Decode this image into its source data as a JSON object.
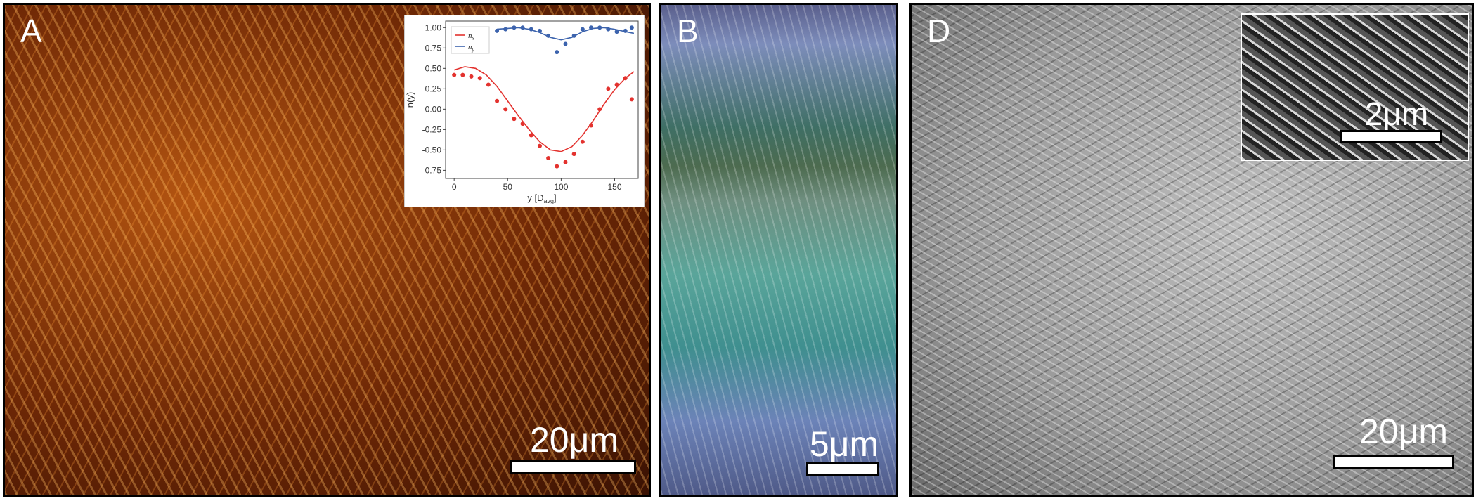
{
  "panels": {
    "A": {
      "label": "A",
      "scale_label": "20μm",
      "inset": {
        "chart_data": {
          "type": "line",
          "xlabel": "y [D",
          "xlabel_sub": "avg",
          "xlabel_end": "]",
          "ylabel": "n(y)",
          "xlim": [
            -8,
            172
          ],
          "ylim": [
            -0.85,
            1.08
          ],
          "x_ticks": [
            0,
            50,
            100,
            150
          ],
          "y_ticks": [
            1.0,
            0.75,
            0.5,
            0.25,
            0.0,
            -0.25,
            -0.5,
            -0.75
          ],
          "legend": {
            "placement": "top-left",
            "items": [
              {
                "name": "n",
                "sub": "x",
                "color": "#e3322e"
              },
              {
                "name": "n",
                "sub": "y",
                "color": "#3c63ad"
              }
            ]
          },
          "series": [
            {
              "name": "nx",
              "color": "#e3322e",
              "points_x": [
                0,
                8,
                16,
                24,
                32,
                40,
                48,
                56,
                64,
                72,
                80,
                88,
                96,
                104,
                112,
                120,
                128,
                136,
                144,
                152,
                160,
                166
              ],
              "points_y": [
                0.42,
                0.42,
                0.4,
                0.38,
                0.3,
                0.1,
                0.0,
                -0.12,
                -0.18,
                -0.32,
                -0.45,
                -0.6,
                -0.7,
                -0.65,
                -0.55,
                -0.4,
                -0.2,
                0.0,
                0.25,
                0.3,
                0.38,
                0.12
              ],
              "curve_x": [
                0,
                10,
                20,
                30,
                40,
                50,
                60,
                70,
                80,
                90,
                100,
                110,
                120,
                130,
                140,
                150,
                160,
                168
              ],
              "curve_y": [
                0.48,
                0.52,
                0.5,
                0.42,
                0.28,
                0.1,
                -0.08,
                -0.25,
                -0.4,
                -0.5,
                -0.52,
                -0.46,
                -0.32,
                -0.14,
                0.06,
                0.24,
                0.38,
                0.46
              ]
            },
            {
              "name": "ny",
              "color": "#3c63ad",
              "points_x": [
                40,
                48,
                56,
                64,
                72,
                80,
                88,
                96,
                104,
                112,
                120,
                128,
                136,
                144,
                152,
                160,
                166
              ],
              "points_y": [
                0.96,
                0.98,
                1.0,
                1.0,
                0.98,
                0.96,
                0.9,
                0.7,
                0.8,
                0.9,
                0.98,
                1.0,
                1.0,
                0.98,
                0.95,
                0.96,
                1.0
              ],
              "curve_x": [
                40,
                50,
                60,
                70,
                80,
                90,
                100,
                110,
                120,
                130,
                140,
                150,
                160,
                168
              ],
              "curve_y": [
                0.98,
                0.99,
                1.0,
                0.98,
                0.94,
                0.88,
                0.85,
                0.88,
                0.95,
                0.99,
                1.0,
                0.98,
                0.95,
                0.93
              ]
            }
          ]
        }
      }
    },
    "B": {
      "label": "B",
      "scale_label": "5μm"
    },
    "D": {
      "label": "D",
      "scale_label": "20μm",
      "inset_scale_label": "2μm"
    }
  }
}
